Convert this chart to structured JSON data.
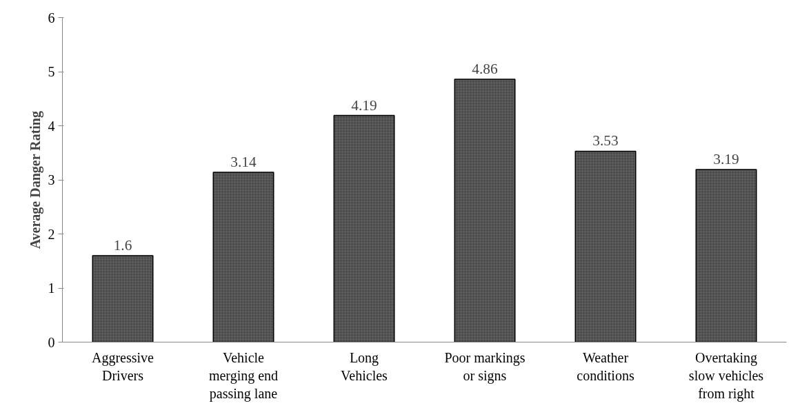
{
  "chart_data": {
    "type": "bar",
    "ylabel": "Average Danger Rating",
    "categories": [
      "Aggressive\nDrivers",
      "Vehicle\nmerging end\npassing lane",
      "Long\nVehicles",
      "Poor markings\nor signs",
      "Weather\nconditions",
      "Overtaking\nslow vehicles\nfrom right"
    ],
    "values": [
      1.6,
      3.14,
      4.19,
      4.86,
      3.53,
      3.19
    ],
    "color": "#5a5a5a",
    "ylim": [
      0,
      6
    ],
    "yticks": [
      0,
      1,
      2,
      3,
      4,
      5,
      6
    ],
    "grid": false,
    "data_labels": true
  }
}
